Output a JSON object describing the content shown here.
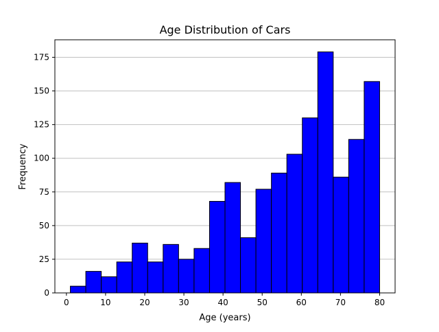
{
  "chart_data": {
    "type": "bar",
    "title": "Age Distribution of Cars",
    "xlabel": "Age (years)",
    "ylabel": "Frequency",
    "bin_edges": [
      1.0,
      4.95,
      8.9,
      12.85,
      16.8,
      20.75,
      24.7,
      28.65,
      32.6,
      36.55,
      40.5,
      44.45,
      48.4,
      52.35,
      56.3,
      60.25,
      64.2,
      68.15,
      72.1,
      76.05,
      80.0
    ],
    "values": [
      5,
      16,
      12,
      23,
      37,
      23,
      36,
      25,
      33,
      68,
      82,
      41,
      77,
      89,
      103,
      130,
      179,
      86,
      114,
      157
    ],
    "xlim": [
      -2.95,
      83.95
    ],
    "ylim": [
      0,
      188
    ],
    "x_ticks": [
      0,
      10,
      20,
      30,
      40,
      50,
      60,
      70,
      80
    ],
    "y_ticks": [
      0,
      25,
      50,
      75,
      100,
      125,
      150,
      175
    ],
    "grid": "y",
    "bar_color": "#0000ff",
    "edge_color": "#000000",
    "grid_color": "#c0c0c0"
  }
}
